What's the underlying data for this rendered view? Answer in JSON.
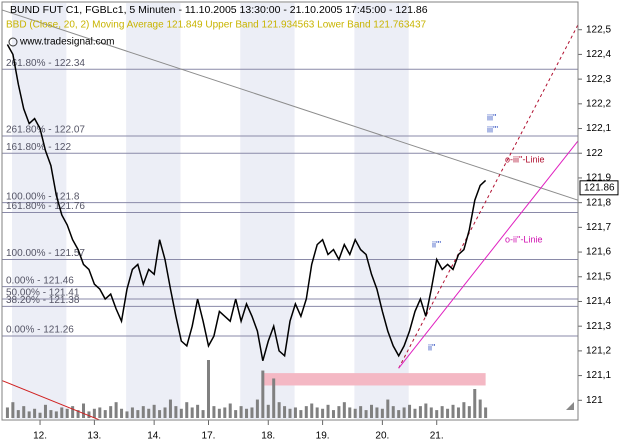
{
  "chart_data": {
    "type": "line",
    "title": "BUND FUT C1, FGBLc1, 5 Minuten - 11.10.2005 13:30:00 - 21.10.2005 17:45:00 - 121.86",
    "subtitle": "BBD (Close, 20, 2) Moving Average 121.849 Upper Band 121.934563 Lower Band 121.763437",
    "source": "www.tradesignal.com",
    "color": "#000000",
    "values": [
      122.44,
      122.4,
      122.28,
      122.18,
      122.12,
      122.14,
      122.1,
      122.01,
      121.95,
      121.83,
      121.75,
      121.71,
      121.65,
      121.61,
      121.55,
      121.53,
      121.47,
      121.45,
      121.41,
      121.43,
      121.37,
      121.32,
      121.45,
      121.53,
      121.55,
      121.47,
      121.53,
      121.51,
      121.65,
      121.57,
      121.45,
      121.34,
      121.24,
      121.22,
      121.3,
      121.41,
      121.32,
      121.22,
      121.26,
      121.36,
      121.34,
      121.32,
      121.41,
      121.32,
      121.39,
      121.34,
      121.28,
      121.16,
      121.24,
      121.3,
      121.2,
      121.18,
      121.32,
      121.39,
      121.34,
      121.41,
      121.55,
      121.63,
      121.65,
      121.59,
      121.61,
      121.57,
      121.63,
      121.59,
      121.65,
      121.61,
      121.59,
      121.51,
      121.45,
      121.36,
      121.28,
      121.22,
      121.18,
      121.22,
      121.28,
      121.36,
      121.41,
      121.34,
      121.45,
      121.57,
      121.53,
      121.55,
      121.53,
      121.59,
      121.61,
      121.69,
      121.81,
      121.87,
      121.89
    ],
    "volume": [
      8,
      12,
      6,
      9,
      5,
      7,
      4,
      10,
      6,
      5,
      8,
      7,
      9,
      6,
      11,
      5,
      7,
      8,
      6,
      9,
      12,
      7,
      5,
      8,
      6,
      9,
      7,
      10,
      6,
      8,
      14,
      9,
      7,
      12,
      8,
      10,
      6,
      44,
      9,
      7,
      8,
      11,
      6,
      9,
      7,
      8,
      14,
      36,
      10,
      30,
      12,
      9,
      7,
      8,
      6,
      9,
      11,
      8,
      7,
      10,
      6,
      9,
      12,
      8,
      7,
      9,
      6,
      10,
      8,
      7,
      14,
      9,
      6,
      8,
      10,
      7,
      9,
      11,
      8,
      6,
      9,
      7,
      10,
      8,
      12,
      9,
      22,
      14,
      8
    ],
    "volume_color": "#808080",
    "last": 121.86,
    "xlim": [
      -1,
      105
    ],
    "xticks": [
      {
        "value": 6,
        "label": "12."
      },
      {
        "value": 16,
        "label": "13."
      },
      {
        "value": 27,
        "label": "14."
      },
      {
        "value": 37,
        "label": "17."
      },
      {
        "value": 48,
        "label": "18."
      },
      {
        "value": 58,
        "label": "19."
      },
      {
        "value": 69,
        "label": "20."
      },
      {
        "value": 79,
        "label": "21."
      }
    ],
    "ylim": [
      120.9,
      122.6
    ],
    "yticks": [
      121,
      {
        "value": 121.1,
        "label": "121,1"
      },
      {
        "value": 121.2,
        "label": "121,2"
      },
      {
        "value": 121.3,
        "label": "121,3"
      },
      {
        "value": 121.4,
        "label": "121,4"
      },
      {
        "value": 121.5,
        "label": "121,5"
      },
      {
        "value": 121.6,
        "label": "121,6"
      },
      {
        "value": 121.7,
        "label": "121,7"
      },
      {
        "value": 121.8,
        "label": "121,8"
      },
      {
        "value": 121.9,
        "label": "121,9"
      },
      122,
      {
        "value": 122.1,
        "label": "122,1"
      },
      {
        "value": 122.2,
        "label": "122,2"
      },
      {
        "value": 122.3,
        "label": "122,3"
      },
      {
        "value": 122.4,
        "label": "122,4"
      },
      {
        "value": 122.5,
        "label": "122,5"
      }
    ],
    "levels": [
      {
        "label": "261.80% - 122.34",
        "value": 122.34
      },
      {
        "label": "261.80% - 122.07",
        "value": 122.07
      },
      {
        "label": "161.80% - 122",
        "value": 122
      },
      {
        "label": "100.00% - 121.8",
        "value": 121.8
      },
      {
        "label": "161.80% - 121.76",
        "value": 121.76
      },
      {
        "label": "100.00% - 121.57",
        "value": 121.57
      },
      {
        "label": "0.00% - 121.46",
        "value": 121.46
      },
      {
        "label": "50.00% - 121.41",
        "value": 121.41
      },
      {
        "label": "38.20% - 121.38",
        "value": 121.38
      },
      {
        "label": "0.00% - 121.26",
        "value": 121.26
      }
    ],
    "level_color": "#8a8aa8",
    "trend_lines": [
      {
        "x": [
          -1,
          105
        ],
        "y": [
          122.58,
          121.81
        ],
        "color": "#8c8c8c",
        "dashed": false
      },
      {
        "x": [
          -1,
          17
        ],
        "y": [
          121.08,
          120.92
        ],
        "color": "#d02020",
        "dashed": false
      },
      {
        "x": [
          72,
          105
        ],
        "y": [
          121.13,
          122.52
        ],
        "color": "#b01030",
        "dashed": true
      },
      {
        "x": [
          72,
          105
        ],
        "y": [
          121.13,
          122.05
        ],
        "color": "#e020c0",
        "dashed": false
      }
    ],
    "zone": {
      "x": [
        47,
        88
      ],
      "y": [
        121.06,
        121.11
      ],
      "color": "#f4b8c4"
    },
    "annotations": [
      {
        "text": "iii''",
        "color": "#3050c0"
      },
      {
        "text": "iii'''",
        "color": "#3050c0"
      },
      {
        "text": "o-iii''-Linie",
        "color": "#b01030"
      },
      {
        "text": "o-ii''-Linie",
        "color": "#d010b0"
      },
      {
        "text": "ii''",
        "color": "#3050c0"
      },
      {
        "text": "ii'''",
        "color": "#3050c0"
      }
    ]
  }
}
